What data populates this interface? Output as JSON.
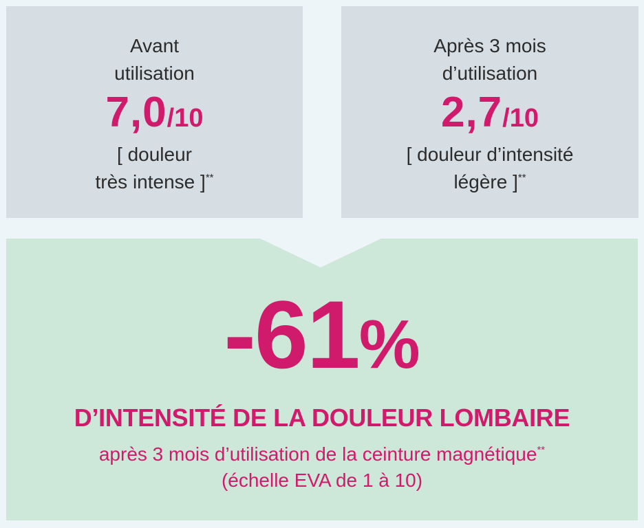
{
  "before": {
    "caption_line1": "Avant",
    "caption_line2": "utilisation",
    "score_value": "7,0",
    "score_slash": "/",
    "score_max": "10",
    "desc_line1": "[ douleur",
    "desc_line2": "très intense ]",
    "footnote_mark": "**"
  },
  "after": {
    "caption_line1": "Après 3 mois",
    "caption_line2": "d’utilisation",
    "score_value": "2,7",
    "score_slash": "/",
    "score_max": "10",
    "desc_line1": "[ douleur d’intensité",
    "desc_line2": "légère ]",
    "footnote_mark": "**"
  },
  "result": {
    "percent_value": "-61",
    "percent_sign": "%",
    "headline": "D’INTENSITÉ DE LA DOULEUR LOMBAIRE",
    "subtitle": "après 3 mois d’utilisation de la ceinture magnétique",
    "subtitle_footnote": "**",
    "scale_note": "(échelle EVA de 1 à 10)"
  },
  "colors": {
    "accent": "#d01a6b",
    "card_bg": "#d6dde3",
    "result_bg": "#cde7d8",
    "page_bg": "#eef5f9"
  }
}
